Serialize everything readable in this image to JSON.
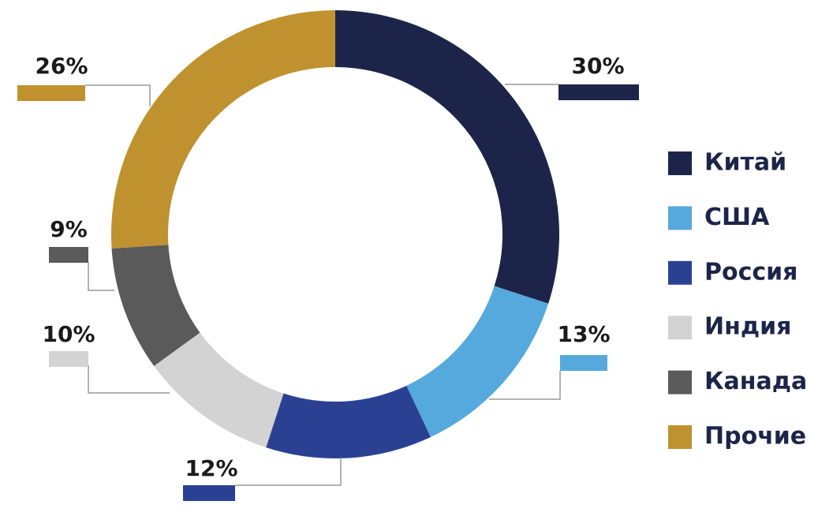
{
  "chart_data": {
    "type": "donut",
    "categories": [
      "Китай",
      "США",
      "Россия",
      "Индия",
      "Канада",
      "Прочие"
    ],
    "values": [
      30,
      13,
      12,
      10,
      9,
      26
    ],
    "value_labels": [
      "30%",
      "13%",
      "12%",
      "10%",
      "9%",
      "26%"
    ],
    "colors": [
      "#1c2549",
      "#56a9dc",
      "#2a4193",
      "#d3d3d3",
      "#5a5a5a",
      "#bf922f"
    ],
    "legend": "right"
  }
}
